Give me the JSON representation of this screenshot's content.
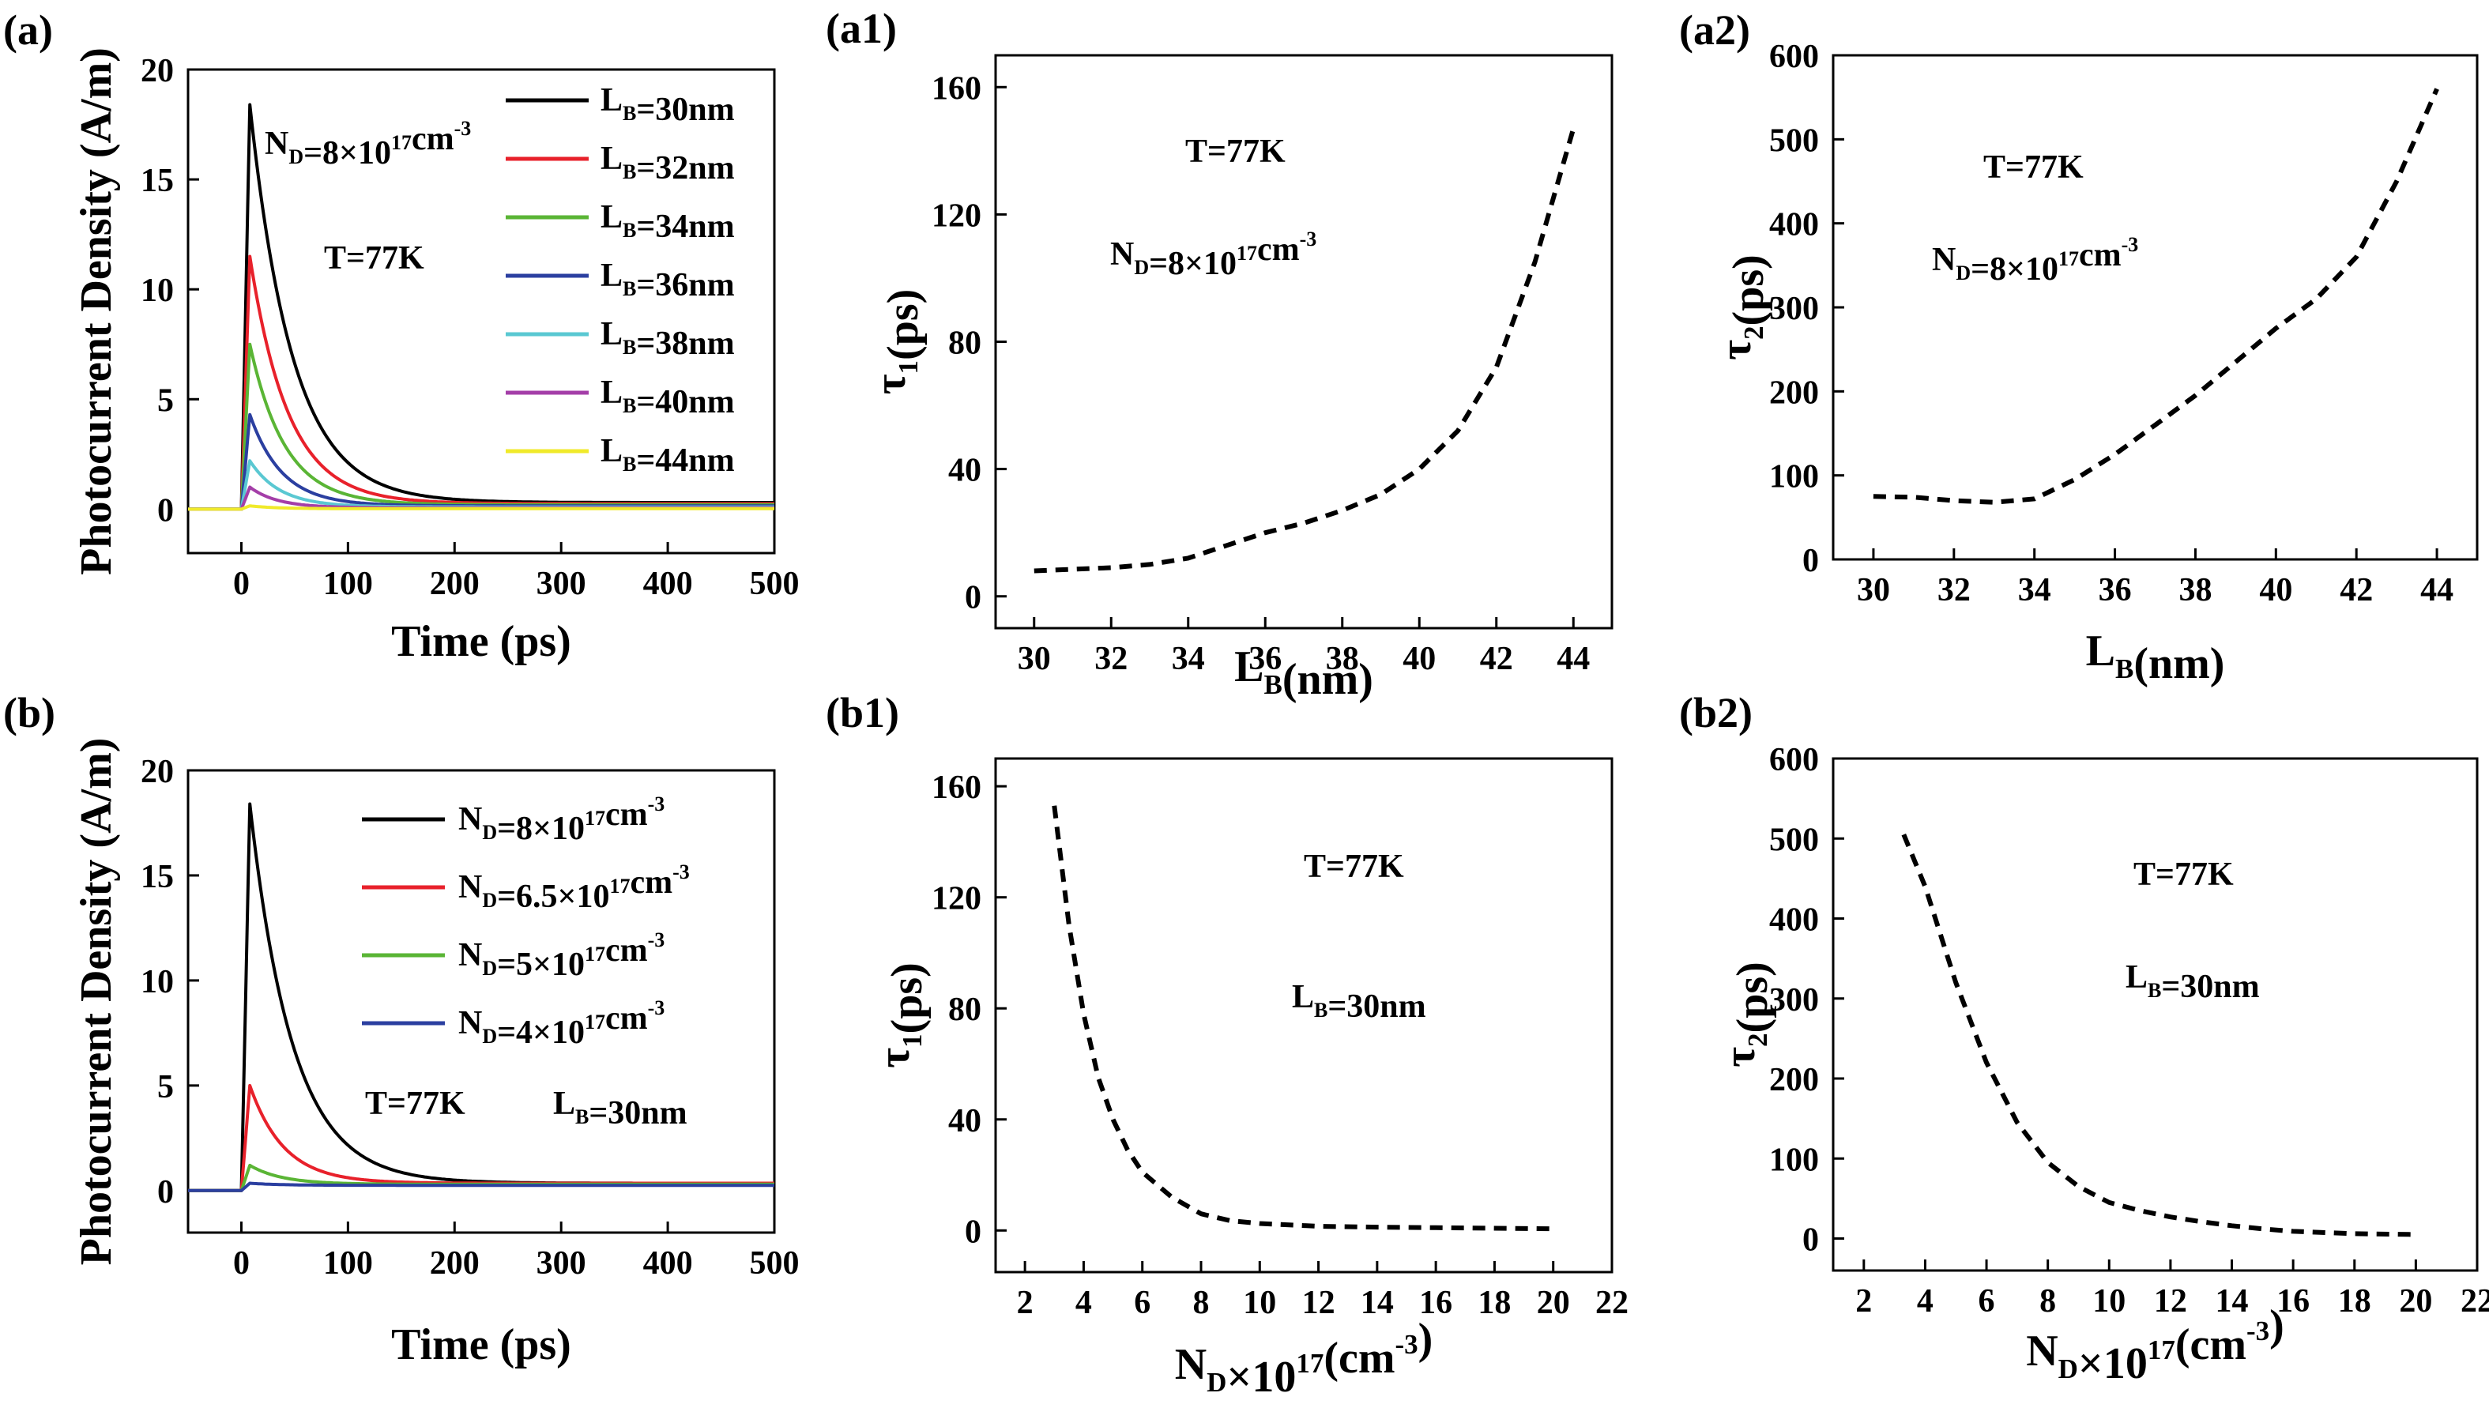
{
  "chart_data": [
    {
      "panel": "(a)",
      "type": "line",
      "title": "",
      "xlabel": "Time (ps)",
      "ylabel": "Photocurrent Density (A/m)",
      "xlim": [
        -50,
        500
      ],
      "ylim": [
        -2,
        20
      ],
      "xticks": [
        0,
        100,
        200,
        300,
        400,
        500
      ],
      "yticks": [
        0,
        5,
        10,
        15,
        20
      ],
      "annotations": [
        {
          "id": "nd",
          "segments": [
            {
              "t": "N"
            },
            {
              "t": "D",
              "s": "sub"
            },
            {
              "t": "=8×10"
            },
            {
              "t": "17",
              "s": "sup"
            },
            {
              "t": "cm"
            },
            {
              "t": "-3",
              "s": "sup"
            }
          ]
        },
        {
          "id": "temp",
          "segments": [
            {
              "t": "T=77K"
            }
          ]
        }
      ],
      "series": [
        {
          "name": "LB=30nm",
          "label": [
            {
              "t": "L"
            },
            {
              "t": "B",
              "s": "sub"
            },
            {
              "t": "=30nm"
            }
          ],
          "color": "#000000",
          "peak": 18.4,
          "tau": 40,
          "tail": 0.3
        },
        {
          "name": "LB=32nm",
          "label": [
            {
              "t": "L"
            },
            {
              "t": "B",
              "s": "sub"
            },
            {
              "t": "=32nm"
            }
          ],
          "color": "#e8212b",
          "peak": 11.5,
          "tau": 36,
          "tail": 0.25
        },
        {
          "name": "LB=34nm",
          "label": [
            {
              "t": "L"
            },
            {
              "t": "B",
              "s": "sub"
            },
            {
              "t": "=34nm"
            }
          ],
          "color": "#5ab535",
          "peak": 7.5,
          "tau": 33,
          "tail": 0.2
        },
        {
          "name": "LB=36nm",
          "label": [
            {
              "t": "L"
            },
            {
              "t": "B",
              "s": "sub"
            },
            {
              "t": "=36nm"
            }
          ],
          "color": "#2b3fa0",
          "peak": 4.3,
          "tau": 30,
          "tail": 0.15
        },
        {
          "name": "LB=38nm",
          "label": [
            {
              "t": "L"
            },
            {
              "t": "B",
              "s": "sub"
            },
            {
              "t": "=38nm"
            }
          ],
          "color": "#5ac8d2",
          "peak": 2.2,
          "tau": 28,
          "tail": 0.1
        },
        {
          "name": "LB=40nm",
          "label": [
            {
              "t": "L"
            },
            {
              "t": "B",
              "s": "sub"
            },
            {
              "t": "=40nm"
            }
          ],
          "color": "#a43ea8",
          "peak": 1.0,
          "tau": 26,
          "tail": 0.06
        },
        {
          "name": "LB=44nm",
          "label": [
            {
              "t": "L"
            },
            {
              "t": "B",
              "s": "sub"
            },
            {
              "t": "=44nm"
            }
          ],
          "color": "#f0ea2a",
          "peak": 0.15,
          "tau": 24,
          "tail": 0.02
        }
      ]
    },
    {
      "panel": "(a1)",
      "type": "line",
      "xlabel": [
        {
          "t": "L"
        },
        {
          "t": "B",
          "s": "sub"
        },
        {
          "t": "(nm)"
        }
      ],
      "ylabel": [
        {
          "t": "τ"
        },
        {
          "t": "1",
          "s": "sub"
        },
        {
          "t": "(ps)"
        }
      ],
      "xlim": [
        29,
        45
      ],
      "ylim": [
        -10,
        170
      ],
      "xticks": [
        30,
        32,
        34,
        36,
        38,
        40,
        42,
        44
      ],
      "yticks": [
        0,
        40,
        80,
        120,
        160
      ],
      "annotations": [
        {
          "id": "temp",
          "segments": [
            {
              "t": "T=77K"
            }
          ]
        },
        {
          "id": "nd",
          "segments": [
            {
              "t": "N"
            },
            {
              "t": "D",
              "s": "sub"
            },
            {
              "t": "=8×10"
            },
            {
              "t": "17",
              "s": "sup"
            },
            {
              "t": "cm"
            },
            {
              "t": "-3",
              "s": "sup"
            }
          ]
        }
      ],
      "series": [
        {
          "name": "tau1",
          "style": "dashed",
          "x": [
            30,
            31,
            32,
            33,
            34,
            35,
            36,
            37,
            38,
            39,
            40,
            41,
            42,
            43,
            44
          ],
          "y": [
            8,
            8.5,
            9,
            10,
            12,
            16,
            20,
            23,
            27,
            32,
            40,
            52,
            72,
            105,
            147
          ]
        }
      ]
    },
    {
      "panel": "(a2)",
      "type": "line",
      "xlabel": [
        {
          "t": "L"
        },
        {
          "t": "B",
          "s": "sub"
        },
        {
          "t": "(nm)"
        }
      ],
      "ylabel": [
        {
          "t": "τ"
        },
        {
          "t": "2",
          "s": "sub"
        },
        {
          "t": "(ps)"
        }
      ],
      "xlim": [
        29,
        45
      ],
      "ylim": [
        0,
        600
      ],
      "xticks": [
        30,
        32,
        34,
        36,
        38,
        40,
        42,
        44
      ],
      "yticks": [
        0,
        100,
        200,
        300,
        400,
        500,
        600
      ],
      "annotations": [
        {
          "id": "temp",
          "segments": [
            {
              "t": "T=77K"
            }
          ]
        },
        {
          "id": "nd",
          "segments": [
            {
              "t": "N"
            },
            {
              "t": "D",
              "s": "sub"
            },
            {
              "t": "=8×10"
            },
            {
              "t": "17",
              "s": "sup"
            },
            {
              "t": "cm"
            },
            {
              "t": "-3",
              "s": "sup"
            }
          ]
        }
      ],
      "series": [
        {
          "name": "tau2",
          "style": "dashed",
          "x": [
            30,
            31,
            32,
            33,
            34,
            35,
            36,
            37,
            38,
            39,
            40,
            41,
            42,
            43,
            44
          ],
          "y": [
            75,
            74,
            70,
            68,
            72,
            95,
            125,
            160,
            195,
            235,
            275,
            310,
            360,
            450,
            560
          ]
        }
      ]
    },
    {
      "panel": "(b)",
      "type": "line",
      "title": "",
      "xlabel": "Time (ps)",
      "ylabel": "Photocurrent Density (A/m)",
      "xlim": [
        -50,
        500
      ],
      "ylim": [
        -2,
        20
      ],
      "xticks": [
        0,
        100,
        200,
        300,
        400,
        500
      ],
      "yticks": [
        0,
        5,
        10,
        15,
        20
      ],
      "annotations": [
        {
          "id": "temp",
          "segments": [
            {
              "t": "T=77K"
            }
          ]
        },
        {
          "id": "lb",
          "segments": [
            {
              "t": "L"
            },
            {
              "t": "B",
              "s": "sub"
            },
            {
              "t": "=30nm"
            }
          ]
        }
      ],
      "series": [
        {
          "name": "ND=8e17",
          "label": [
            {
              "t": "N"
            },
            {
              "t": "D",
              "s": "sub"
            },
            {
              "t": "=8×10"
            },
            {
              "t": "17",
              "s": "sup"
            },
            {
              "t": "cm"
            },
            {
              "t": "-3",
              "s": "sup"
            }
          ],
          "color": "#000000",
          "peak": 18.4,
          "tau": 40,
          "tail": 0.35
        },
        {
          "name": "ND=6.5e17",
          "label": [
            {
              "t": "N"
            },
            {
              "t": "D",
              "s": "sub"
            },
            {
              "t": "=6.5×10"
            },
            {
              "t": "17",
              "s": "sup"
            },
            {
              "t": "cm"
            },
            {
              "t": "-3",
              "s": "sup"
            }
          ],
          "color": "#e8212b",
          "peak": 5.0,
          "tau": 32,
          "tail": 0.35
        },
        {
          "name": "ND=5e17",
          "label": [
            {
              "t": "N"
            },
            {
              "t": "D",
              "s": "sub"
            },
            {
              "t": "=5×10"
            },
            {
              "t": "17",
              "s": "sup"
            },
            {
              "t": "cm"
            },
            {
              "t": "-3",
              "s": "sup"
            }
          ],
          "color": "#5ab535",
          "peak": 1.2,
          "tau": 30,
          "tail": 0.3
        },
        {
          "name": "ND=4e17",
          "label": [
            {
              "t": "N"
            },
            {
              "t": "D",
              "s": "sub"
            },
            {
              "t": "=4×10"
            },
            {
              "t": "17",
              "s": "sup"
            },
            {
              "t": "cm"
            },
            {
              "t": "-3",
              "s": "sup"
            }
          ],
          "color": "#2b3fa0",
          "peak": 0.35,
          "tau": 28,
          "tail": 0.25
        }
      ]
    },
    {
      "panel": "(b1)",
      "type": "line",
      "xlabel": [
        {
          "t": "N"
        },
        {
          "t": "D",
          "s": "sub"
        },
        {
          "t": "×10"
        },
        {
          "t": "17",
          "s": "sup"
        },
        {
          "t": "(cm"
        },
        {
          "t": "-3",
          "s": "sup"
        },
        {
          "t": ")"
        }
      ],
      "ylabel": [
        {
          "t": "τ"
        },
        {
          "t": "1",
          "s": "sub"
        },
        {
          "t": "(ps)"
        }
      ],
      "xlim": [
        1,
        22
      ],
      "ylim": [
        -15,
        170
      ],
      "xticks": [
        2,
        4,
        6,
        8,
        10,
        12,
        14,
        16,
        18,
        20,
        22
      ],
      "yticks": [
        0,
        40,
        80,
        120,
        160
      ],
      "annotations": [
        {
          "id": "temp",
          "segments": [
            {
              "t": "T=77K"
            }
          ]
        },
        {
          "id": "lb",
          "segments": [
            {
              "t": "L"
            },
            {
              "t": "B",
              "s": "sub"
            },
            {
              "t": "=30nm"
            }
          ]
        }
      ],
      "series": [
        {
          "name": "tau1",
          "style": "dashed",
          "x": [
            3,
            3.5,
            4,
            4.5,
            5,
            5.5,
            6,
            7,
            8,
            9,
            10,
            12,
            14,
            16,
            18,
            20
          ],
          "y": [
            153,
            110,
            78,
            55,
            40,
            29,
            21,
            12,
            6,
            3.5,
            2.5,
            1.5,
            1.2,
            1,
            0.8,
            0.6
          ]
        }
      ]
    },
    {
      "panel": "(b2)",
      "type": "line",
      "xlabel": [
        {
          "t": "N"
        },
        {
          "t": "D",
          "s": "sub"
        },
        {
          "t": "×10"
        },
        {
          "t": "17",
          "s": "sup"
        },
        {
          "t": "(cm"
        },
        {
          "t": "-3",
          "s": "sup"
        },
        {
          "t": ")"
        }
      ],
      "ylabel": [
        {
          "t": "τ"
        },
        {
          "t": "2",
          "s": "sub"
        },
        {
          "t": "(ps)"
        }
      ],
      "xlim": [
        1,
        22
      ],
      "ylim": [
        -40,
        600
      ],
      "xticks": [
        2,
        4,
        6,
        8,
        10,
        12,
        14,
        16,
        18,
        20,
        22
      ],
      "yticks": [
        0,
        100,
        200,
        300,
        400,
        500,
        600
      ],
      "annotations": [
        {
          "id": "temp",
          "segments": [
            {
              "t": "T=77K"
            }
          ]
        },
        {
          "id": "lb",
          "segments": [
            {
              "t": "L"
            },
            {
              "t": "B",
              "s": "sub"
            },
            {
              "t": "=30nm"
            }
          ]
        }
      ],
      "series": [
        {
          "name": "tau2",
          "style": "dashed",
          "x": [
            3.3,
            4,
            5,
            6,
            7,
            8,
            9,
            10,
            11,
            12,
            13,
            14,
            15,
            16,
            18,
            20
          ],
          "y": [
            505,
            440,
            320,
            220,
            145,
            95,
            65,
            45,
            35,
            27,
            21,
            16,
            12,
            9,
            6,
            5
          ]
        }
      ]
    }
  ]
}
